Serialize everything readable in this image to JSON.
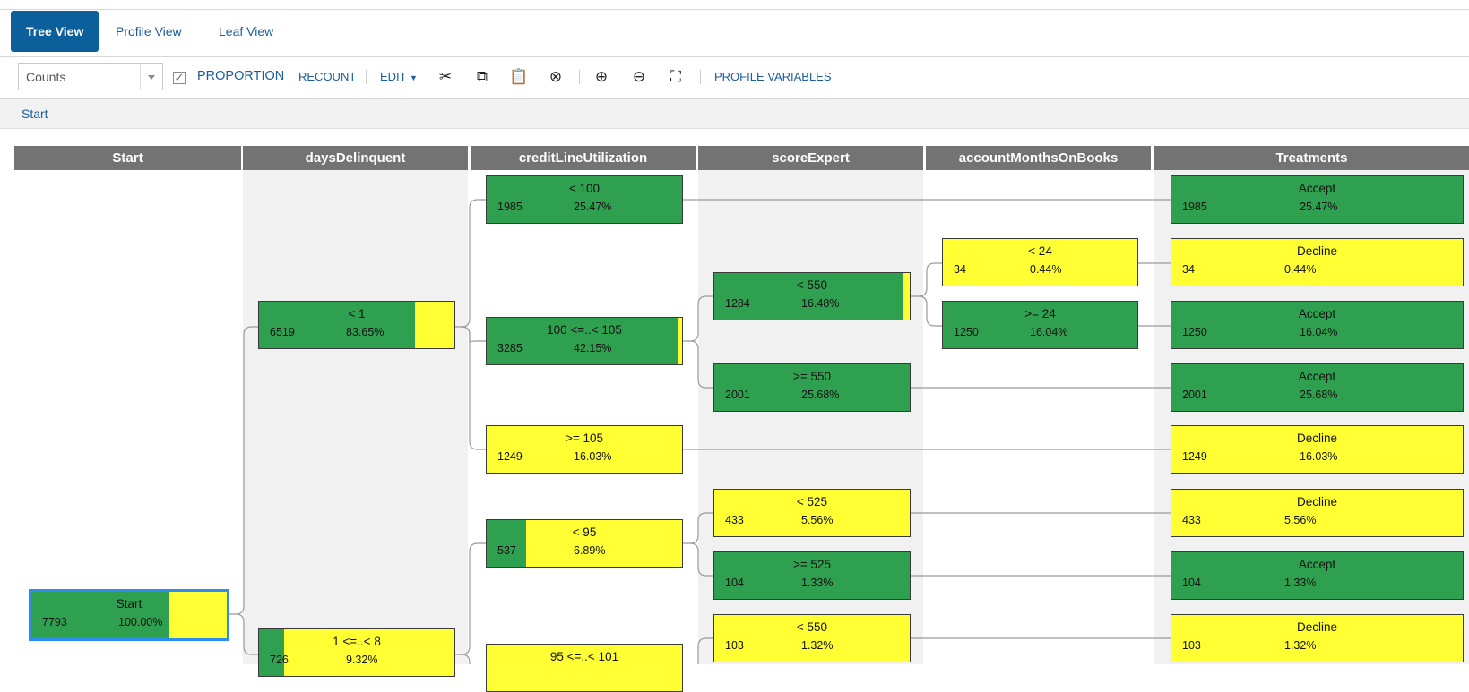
{
  "tabs": [
    {
      "label": "Tree View",
      "active": true
    },
    {
      "label": "Profile View",
      "active": false
    },
    {
      "label": "Leaf View",
      "active": false
    }
  ],
  "toolbar": {
    "select_value": "Counts",
    "proportion_label": "PROPORTION",
    "proportion_checked": true,
    "recount_label": "RECOUNT",
    "edit_label": "EDIT",
    "profile_variables_label": "PROFILE VARIABLES"
  },
  "breadcrumb": "Start",
  "columns": [
    "Start",
    "daysDelinquent",
    "creditLineUtilization",
    "scoreExpert",
    "accountMonthsOnBooks",
    "Treatments"
  ],
  "colors": {
    "accept": "#2fa050",
    "decline": "#ffff33",
    "header": "#737373",
    "accent": "#0b5f9b"
  },
  "nodes": {
    "start": {
      "label": "Start",
      "count": "7793",
      "pct": "100.00%",
      "accept_share": 0.7
    },
    "dd_lt1": {
      "label": "< 1",
      "count": "6519",
      "pct": "83.65%",
      "accept_share": 0.8
    },
    "dd_1to8": {
      "label": "1 <=..< 8",
      "count": "726",
      "pct": "9.32%",
      "accept_share": 0.13
    },
    "clu_lt100": {
      "label": "< 100",
      "count": "1985",
      "pct": "25.47%",
      "accept_share": 1
    },
    "clu_100to105": {
      "label": "100 <=..< 105",
      "count": "3285",
      "pct": "42.15%",
      "accept_share": 0.98
    },
    "clu_ge105": {
      "label": ">= 105",
      "count": "1249",
      "pct": "16.03%",
      "accept_share": 0
    },
    "clu_lt95": {
      "label": "< 95",
      "count": "537",
      "pct": "6.89%",
      "accept_share": 0.2
    },
    "clu_95to101": {
      "label": "95 <=..< 101",
      "count": "",
      "pct": "",
      "accept_share": 0
    },
    "se_lt550a": {
      "label": "< 550",
      "count": "1284",
      "pct": "16.48%",
      "accept_share": 0.97
    },
    "se_ge550": {
      "label": ">= 550",
      "count": "2001",
      "pct": "25.68%",
      "accept_share": 1
    },
    "se_lt525": {
      "label": "< 525",
      "count": "433",
      "pct": "5.56%",
      "accept_share": 0
    },
    "se_ge525": {
      "label": ">= 525",
      "count": "104",
      "pct": "1.33%",
      "accept_share": 1
    },
    "se_lt550b": {
      "label": "< 550",
      "count": "103",
      "pct": "1.32%",
      "accept_share": 0
    },
    "am_lt24": {
      "label": "< 24",
      "count": "34",
      "pct": "0.44%",
      "accept_share": 0
    },
    "am_ge24": {
      "label": ">= 24",
      "count": "1250",
      "pct": "16.04%",
      "accept_share": 1
    },
    "t1": {
      "label": "Accept",
      "count": "1985",
      "pct": "25.47%",
      "accept_share": 1
    },
    "t2": {
      "label": "Decline",
      "count": "34",
      "pct": "0.44%",
      "accept_share": 0
    },
    "t3": {
      "label": "Accept",
      "count": "1250",
      "pct": "16.04%",
      "accept_share": 1
    },
    "t4": {
      "label": "Accept",
      "count": "2001",
      "pct": "25.68%",
      "accept_share": 1
    },
    "t5": {
      "label": "Decline",
      "count": "1249",
      "pct": "16.03%",
      "accept_share": 0
    },
    "t6": {
      "label": "Decline",
      "count": "433",
      "pct": "5.56%",
      "accept_share": 0
    },
    "t7": {
      "label": "Accept",
      "count": "104",
      "pct": "1.33%",
      "accept_share": 1
    },
    "t8": {
      "label": "Decline",
      "count": "103",
      "pct": "1.32%",
      "accept_share": 0
    }
  }
}
